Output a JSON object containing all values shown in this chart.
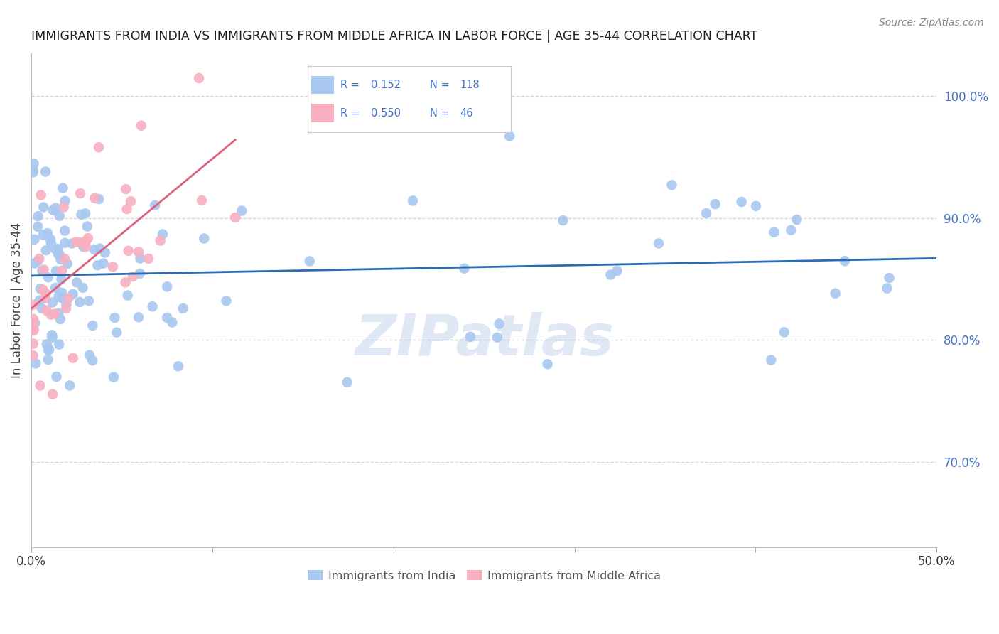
{
  "title": "IMMIGRANTS FROM INDIA VS IMMIGRANTS FROM MIDDLE AFRICA IN LABOR FORCE | AGE 35-44 CORRELATION CHART",
  "source": "Source: ZipAtlas.com",
  "ylabel": "In Labor Force | Age 35-44",
  "right_yticks": [
    70.0,
    80.0,
    90.0,
    100.0
  ],
  "xlim": [
    0.0,
    50.0
  ],
  "ylim": [
    63.0,
    103.5
  ],
  "india_R": 0.152,
  "india_N": 118,
  "africa_R": 0.55,
  "africa_N": 46,
  "india_line_color": "#2b6cb8",
  "africa_line_color": "#e0607a",
  "india_dot_color": "#a8c8f0",
  "africa_dot_color": "#f8b0c0",
  "legend_text_color": "#4472c4",
  "background_color": "#ffffff",
  "grid_color": "#cccccc",
  "title_color": "#222222",
  "right_axis_color": "#4472c4",
  "source_color": "#888888"
}
